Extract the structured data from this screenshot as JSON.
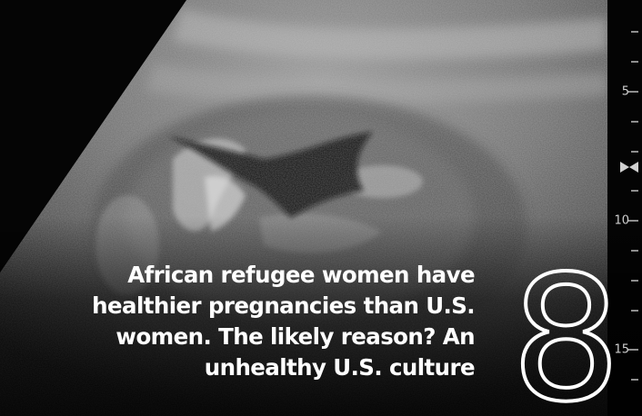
{
  "headline": {
    "lines": [
      "African refugee women have",
      "healthier pregnancies than U.S.",
      "women. The likely reason? An",
      "unhealthy U.S. culture"
    ]
  },
  "rank_number": "8",
  "depth_scale": {
    "labels": [
      "5",
      "10",
      "15"
    ]
  },
  "colors": {
    "text": "#ffffff",
    "background": "#000000"
  },
  "image_subject": "ultrasound-scan"
}
